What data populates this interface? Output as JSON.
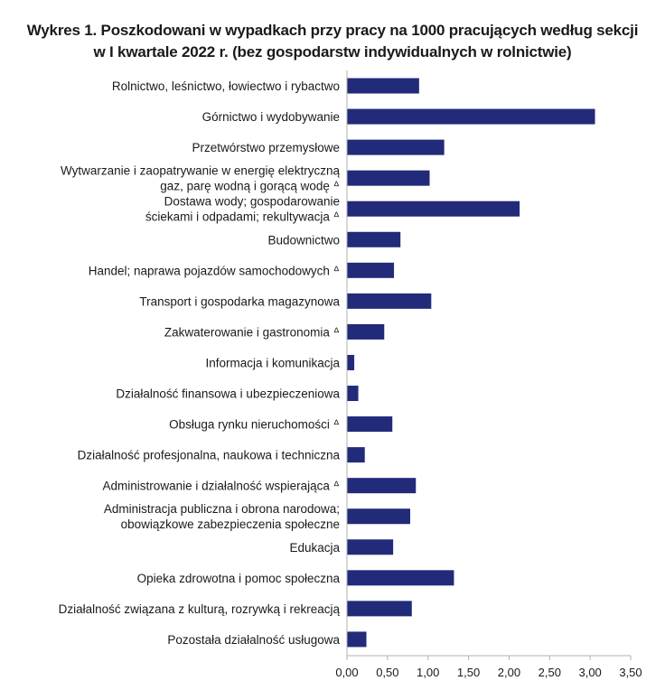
{
  "chart_data": {
    "type": "bar",
    "orientation": "horizontal",
    "title": "Wykres 1. Poszkodowani w wypadkach przy pracy na 1000 pracujących według sekcji w I kwartale 2022 r. (bez gospodarstw indywidualnych w rolnictwie)",
    "title_lines": [
      "Wykres 1. Poszkodowani w wypadkach przy pracy na 1000 pracujących według sekcji",
      "w I kwartale 2022 r. (bez gospodarstw indywidualnych w rolnictwie)"
    ],
    "categories": [
      [
        "Rolnictwo, leśnictwo, łowiectwo i rybactwo"
      ],
      [
        "Górnictwo i wydobywanie"
      ],
      [
        "Przetwórstwo przemysłowe"
      ],
      [
        "Wytwarzanie i zaopatrywanie w energię elektryczną",
        "gaz, parę wodną i gorącą wodę ᐞ"
      ],
      [
        "Dostawa wody; gospodarowanie",
        "ściekami i odpadami; rekultywacja ᐞ"
      ],
      [
        "Budownictwo"
      ],
      [
        "Handel; naprawa pojazdów samochodowych ᐞ"
      ],
      [
        "Transport i gospodarka magazynowa"
      ],
      [
        "Zakwaterowanie i gastronomia ᐞ"
      ],
      [
        "Informacja i komunikacja"
      ],
      [
        "Działalność finansowa i ubezpieczeniowa"
      ],
      [
        "Obsługa rynku nieruchomości ᐞ"
      ],
      [
        "Działalność profesjonalna, naukowa i techniczna"
      ],
      [
        "Administrowanie i działalność wspierająca ᐞ"
      ],
      [
        "Administracja publiczna i obrona narodowa;",
        "obowiązkowe zabezpieczenia społeczne"
      ],
      [
        "Edukacja"
      ],
      [
        "Opieka zdrowotna i pomoc społeczna"
      ],
      [
        "Działalność związana z kulturą, rozrywką i rekreacją"
      ],
      [
        "Pozostała działalność usługowa"
      ]
    ],
    "values": [
      0.89,
      3.06,
      1.2,
      1.02,
      2.13,
      0.66,
      0.58,
      1.04,
      0.46,
      0.09,
      0.14,
      0.56,
      0.22,
      0.85,
      0.78,
      0.57,
      1.32,
      0.8,
      0.24
    ],
    "xlim": [
      0,
      3.5
    ],
    "xticks": [
      "0,00",
      "0,50",
      "1,00",
      "1,50",
      "2,00",
      "2,50",
      "3,00",
      "3,50"
    ],
    "grid": false,
    "bar_color": "#222a7a",
    "axis_color": "#b0b0b0"
  }
}
